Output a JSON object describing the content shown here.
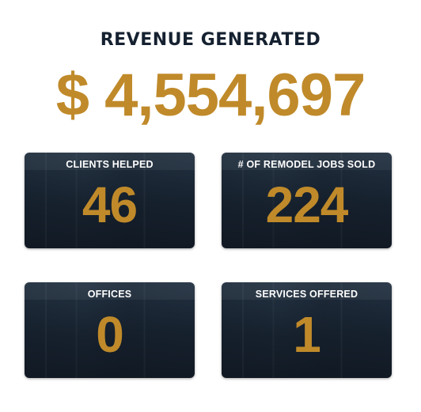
{
  "colors": {
    "accent": "#c08a2a",
    "headline": "#152130",
    "card_label": "#ffffff"
  },
  "headline": "REVENUE GENERATED",
  "revenue": "$ 4,554,697",
  "stats": [
    {
      "label": "CLIENTS HELPED",
      "value": "46"
    },
    {
      "label": "# OF REMODEL JOBS SOLD",
      "value": "224"
    },
    {
      "label": "OFFICES",
      "value": "0"
    },
    {
      "label": "SERVICES OFFERED",
      "value": "1"
    }
  ]
}
